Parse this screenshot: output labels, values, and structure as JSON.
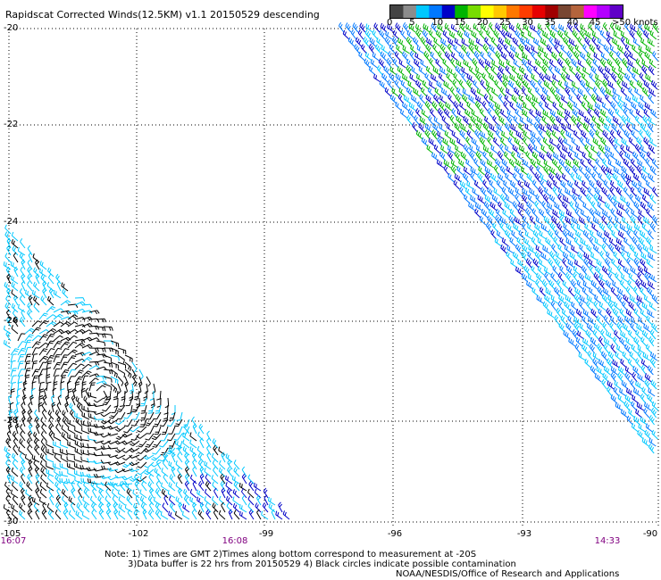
{
  "title": "Rapidscat Corrected Winds(12.5KM) v1.1 20150529 descending",
  "legend": {
    "labels": [
      "0",
      "5",
      "10",
      "15",
      "20",
      "25",
      "30",
      "35",
      "40",
      "45",
      ">50 knots"
    ],
    "colors": [
      "#444444",
      "#8c8c8c",
      "#00c8ff",
      "#0078ff",
      "#0000c8",
      "#00b400",
      "#78dc00",
      "#ffff00",
      "#ffc800",
      "#ff7800",
      "#ff3c00",
      "#e60000",
      "#a00000",
      "#784632",
      "#b4643c",
      "#ff00ff",
      "#b400ff",
      "#6000c8"
    ]
  },
  "axes": {
    "lat_labels": [
      "-20",
      "-22",
      "-24",
      "-26",
      "-28",
      "-30"
    ],
    "lon_labels": [
      "-105",
      "-102",
      "-99",
      "-96",
      "-93",
      "-90"
    ]
  },
  "times": [
    "16:07",
    "16:08",
    "14:33"
  ],
  "notes": [
    "Note: 1) Times are GMT 2)Times along bottom correspond to measurement at -20S",
    "3)Data buffer is 22 hrs from 20150529 4) Black circles indicate possible contamination",
    "NOAA/NESDIS/Office of Research and Applications"
  ]
}
